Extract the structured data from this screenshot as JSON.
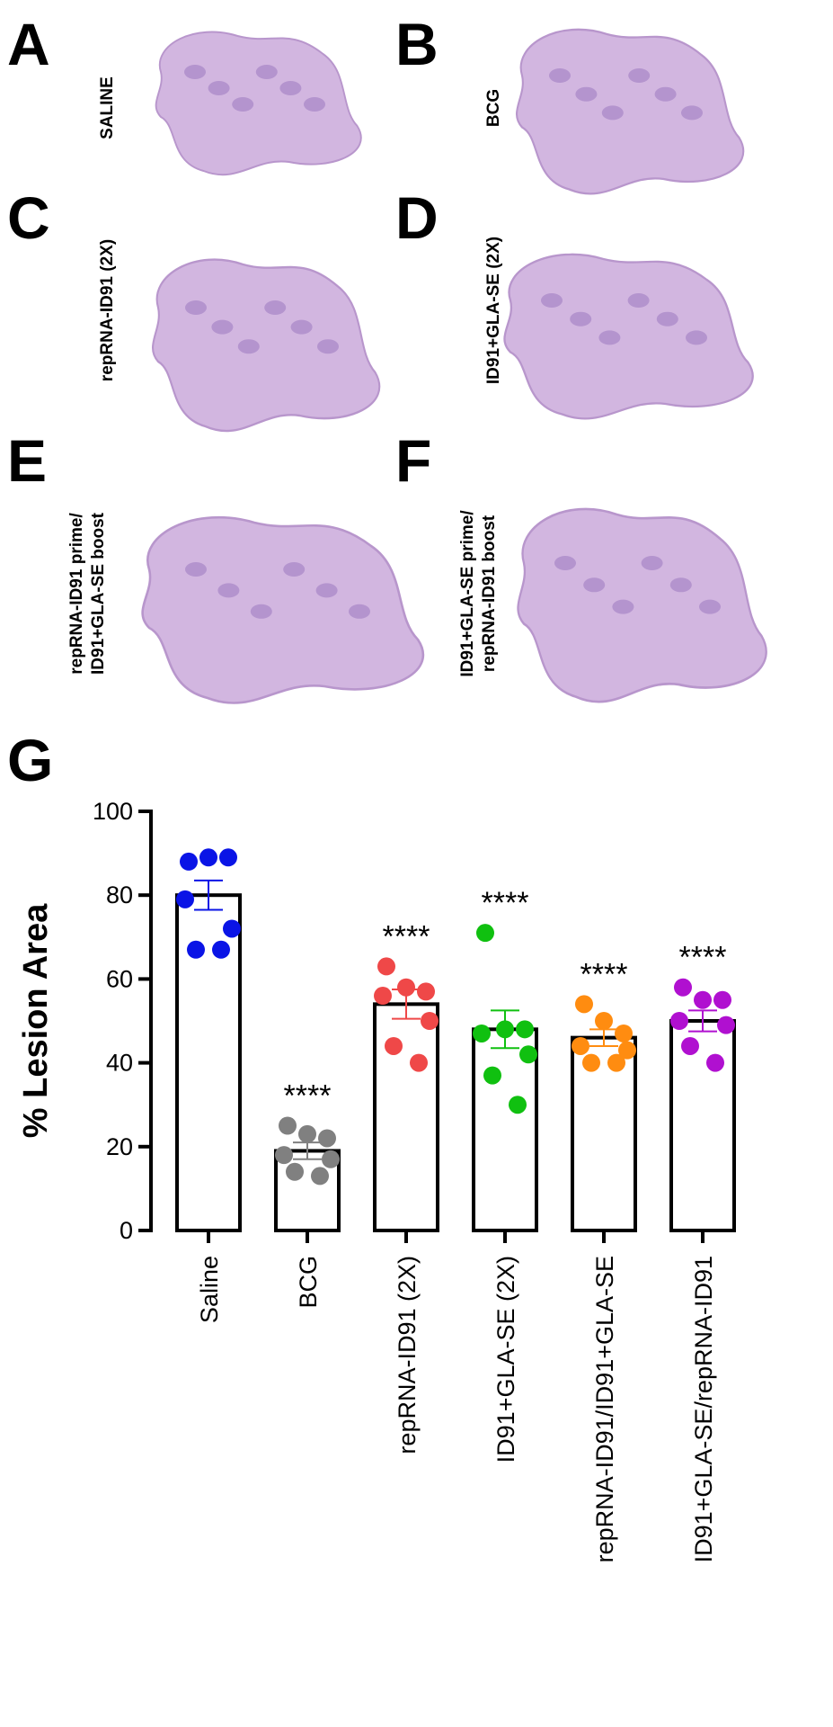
{
  "panels": [
    {
      "letter": "A",
      "label": [
        "SALINE"
      ]
    },
    {
      "letter": "B",
      "label": [
        "BCG"
      ]
    },
    {
      "letter": "C",
      "label": [
        "repRNA-ID91 (2X)"
      ]
    },
    {
      "letter": "D",
      "label": [
        "ID91+GLA-SE (2X)"
      ]
    },
    {
      "letter": "E",
      "label": [
        "repRNA-ID91 prime/",
        "ID91+GLA-SE boost"
      ]
    },
    {
      "letter": "F",
      "label": [
        "ID91+GLA-SE prime/",
        "repRNA-ID91 boost"
      ]
    }
  ],
  "chart_data": {
    "type": "bar",
    "panel_letter": "G",
    "y_label": "% Lesion Area",
    "categories": [
      "Saline",
      "BCG",
      "repRNA-ID91 (2X)",
      "ID91+GLA-SE (2X)",
      "repRNA-ID91/ID91+GLA-SE",
      "ID91+GLA-SE/repRNA-ID91"
    ],
    "values": [
      80,
      19,
      54,
      48,
      46,
      50
    ],
    "errors": [
      3.5,
      2,
      3.5,
      4.5,
      2,
      2.5
    ],
    "colors": [
      "#0a14e6",
      "#808080",
      "#ef4848",
      "#10c010",
      "#ff8c10",
      "#b010d0"
    ],
    "points": [
      [
        88,
        89,
        89,
        79,
        72,
        67,
        67
      ],
      [
        25,
        23,
        22,
        18,
        17,
        14,
        13
      ],
      [
        63,
        58,
        57,
        56,
        50,
        44,
        40
      ],
      [
        71,
        48,
        48,
        47,
        42,
        37,
        30
      ],
      [
        54,
        50,
        47,
        44,
        43,
        40,
        40
      ],
      [
        58,
        55,
        55,
        50,
        49,
        44,
        40
      ]
    ],
    "significance": [
      null,
      "****",
      "****",
      "****",
      "****",
      "****"
    ],
    "ylim": [
      0,
      100
    ],
    "yticks": [
      0,
      20,
      40,
      60,
      80,
      100
    ]
  }
}
